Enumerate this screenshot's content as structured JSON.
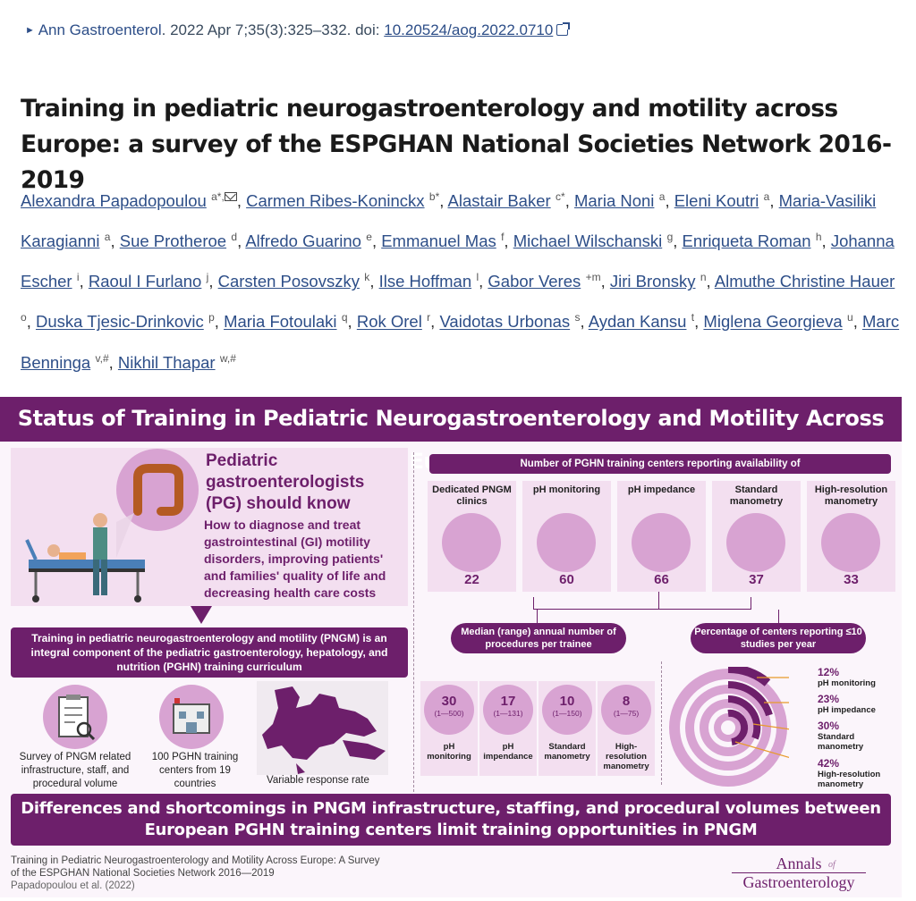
{
  "citation": {
    "journal": "Ann Gastroenterol",
    "details": ". 2022 Apr 7;35(3):325–332. doi: ",
    "doi": "10.20524/aog.2022.0710"
  },
  "title": "Training in pediatric neurogastroenterology and motility across Europe: a survey of the ESPGHAN National Societies Network 2016-2019",
  "authors": [
    {
      "name": "Alexandra Papadopoulou",
      "aff": "a*,"
    },
    {
      "name": "Carmen Ribes-Koninckx",
      "aff": "b*"
    },
    {
      "name": "Alastair Baker",
      "aff": "c*"
    },
    {
      "name": "Maria Noni",
      "aff": "a"
    },
    {
      "name": "Eleni Koutri",
      "aff": "a"
    },
    {
      "name": "Maria-Vasiliki Karagianni",
      "aff": "a"
    },
    {
      "name": "Sue Protheroe",
      "aff": "d"
    },
    {
      "name": "Alfredo Guarino",
      "aff": "e"
    },
    {
      "name": "Emmanuel Mas",
      "aff": "f"
    },
    {
      "name": "Michael Wilschanski",
      "aff": "g"
    },
    {
      "name": "Enriqueta Roman",
      "aff": "h"
    },
    {
      "name": "Johanna Escher",
      "aff": "i"
    },
    {
      "name": "Raoul I Furlano",
      "aff": "j"
    },
    {
      "name": "Carsten Posovszky",
      "aff": "k"
    },
    {
      "name": "Ilse Hoffman",
      "aff": "l"
    },
    {
      "name": "Gabor Veres",
      "aff": "+m"
    },
    {
      "name": "Jiri Bronsky",
      "aff": "n"
    },
    {
      "name": "Almuthe Christine Hauer",
      "aff": "o"
    },
    {
      "name": "Duska Tjesic-Drinkovic",
      "aff": "p"
    },
    {
      "name": "Maria Fotoulaki",
      "aff": "q"
    },
    {
      "name": "Rok Orel",
      "aff": "r"
    },
    {
      "name": "Vaidotas Urbonas",
      "aff": "s"
    },
    {
      "name": "Aydan Kansu",
      "aff": "t"
    },
    {
      "name": "Miglena Georgieva",
      "aff": "u"
    },
    {
      "name": "Marc Benninga",
      "aff": "v,#"
    },
    {
      "name": "Nikhil Thapar",
      "aff": "w,#"
    }
  ],
  "infographic": {
    "banner": "Status of Training in Pediatric Neurogastroenterology and Motility Across Europe",
    "pg_heading": "Pediatric gastroenterologists (PG) should know",
    "pg_text": "How to diagnose and treat gastrointestinal (GI) motility disorders, improving patients' and families' quality of life and decreasing health care costs",
    "curriculum": "Training in pediatric neurogastroenterology and motility (PNGM) is an integral component of the pediatric gastroenterology, hepatology, and nutrition (PGHN) training curriculum",
    "survey_label": "Survey of PNGM related infrastructure, staff, and procedural volume",
    "centers_label": "100 PGHN training centers from 19 countries",
    "map_label": "Variable response rate",
    "availability_title": "Number of PGHN training centers reporting availability of",
    "availability": [
      {
        "label": "Dedicated PNGM clinics",
        "value": "22"
      },
      {
        "label": "pH monitoring",
        "value": "60"
      },
      {
        "label": "pH impedance",
        "value": "66"
      },
      {
        "label": "Standard manometry",
        "value": "37"
      },
      {
        "label": "High-resolution manometry",
        "value": "33"
      }
    ],
    "median_title": "Median (range) annual number of procedures per trainee",
    "procedures": [
      {
        "value": "30",
        "range": "(1—500)",
        "label": "pH monitoring"
      },
      {
        "value": "17",
        "range": "(1—131)",
        "label": "pH impendance"
      },
      {
        "value": "10",
        "range": "(1—150)",
        "label": "Standard manometry"
      },
      {
        "value": "8",
        "range": "(1—75)",
        "label": "High-resolution manometry"
      }
    ],
    "pct_title": "Percentage of centers reporting ≤10 studies per year",
    "percentages": [
      {
        "value": "12%",
        "label": "pH monitoring"
      },
      {
        "value": "23%",
        "label": "pH impedance"
      },
      {
        "value": "30%",
        "label": "Standard manometry"
      },
      {
        "value": "42%",
        "label": "High-resolution manometry"
      }
    ],
    "conclusion": "Differences and shortcomings in PNGM infrastructure, staffing, and procedural volumes between European PGHN training centers limit training opportunities in PNGM",
    "footer_title": "Training in Pediatric Neurogastroenterology and Motility Across Europe: A Survey of the ESPGHAN National Societies Network 2016—2019",
    "footer_authors": "Papadopoulou et al. (2022)",
    "logo_top": "Annals",
    "logo_of": "of",
    "logo_bottom": "Gastroenterology"
  },
  "colors": {
    "brand": "#6d1f6b",
    "link": "#2d4e88",
    "light": "#f3dff0",
    "mid": "#d8a3d2"
  }
}
